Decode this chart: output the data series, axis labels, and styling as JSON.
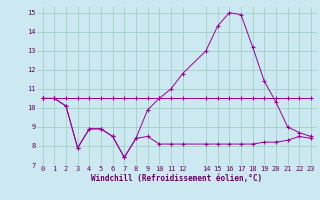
{
  "xlabel": "Windchill (Refroidissement éolien,°C)",
  "bg_color": "#cce8f0",
  "grid_color": "#99ccbb",
  "line_color": "#990099",
  "xlim": [
    -0.5,
    23.5
  ],
  "ylim": [
    7,
    15.3
  ],
  "xticks": [
    0,
    1,
    2,
    3,
    4,
    5,
    6,
    7,
    8,
    9,
    10,
    11,
    12,
    14,
    15,
    16,
    17,
    18,
    19,
    20,
    21,
    22,
    23
  ],
  "yticks": [
    7,
    8,
    9,
    10,
    11,
    12,
    13,
    14,
    15
  ],
  "series1_x": [
    0,
    1,
    2,
    3,
    4,
    5,
    6,
    7,
    8,
    9,
    10,
    11,
    12,
    14,
    15,
    16,
    17,
    18,
    19,
    20,
    21,
    22,
    23
  ],
  "series1_y": [
    10.5,
    10.5,
    10.1,
    7.9,
    8.9,
    8.9,
    8.5,
    7.4,
    8.4,
    8.5,
    8.1,
    8.1,
    8.1,
    8.1,
    8.1,
    8.1,
    8.1,
    8.1,
    8.2,
    8.2,
    8.3,
    8.5,
    8.4
  ],
  "series2_x": [
    0,
    1,
    2,
    3,
    4,
    5,
    6,
    7,
    8,
    9,
    10,
    11,
    12,
    14,
    15,
    16,
    17,
    18,
    19,
    20,
    21,
    22,
    23
  ],
  "series2_y": [
    10.5,
    10.5,
    10.5,
    10.5,
    10.5,
    10.5,
    10.5,
    10.5,
    10.5,
    10.5,
    10.5,
    10.5,
    10.5,
    10.5,
    10.5,
    10.5,
    10.5,
    10.5,
    10.5,
    10.5,
    10.5,
    10.5,
    10.5
  ],
  "series3_x": [
    0,
    1,
    2,
    3,
    4,
    5,
    6,
    7,
    8,
    9,
    10,
    11,
    12,
    14,
    15,
    16,
    17,
    18,
    19,
    20,
    21,
    22,
    23
  ],
  "series3_y": [
    10.5,
    10.5,
    10.1,
    7.9,
    8.9,
    8.9,
    8.5,
    7.4,
    8.4,
    9.9,
    10.5,
    11.0,
    11.8,
    13.0,
    14.3,
    15.0,
    14.9,
    13.2,
    11.4,
    10.3,
    9.0,
    8.7,
    8.5
  ],
  "tick_fontsize": 5,
  "xlabel_fontsize": 5.5
}
